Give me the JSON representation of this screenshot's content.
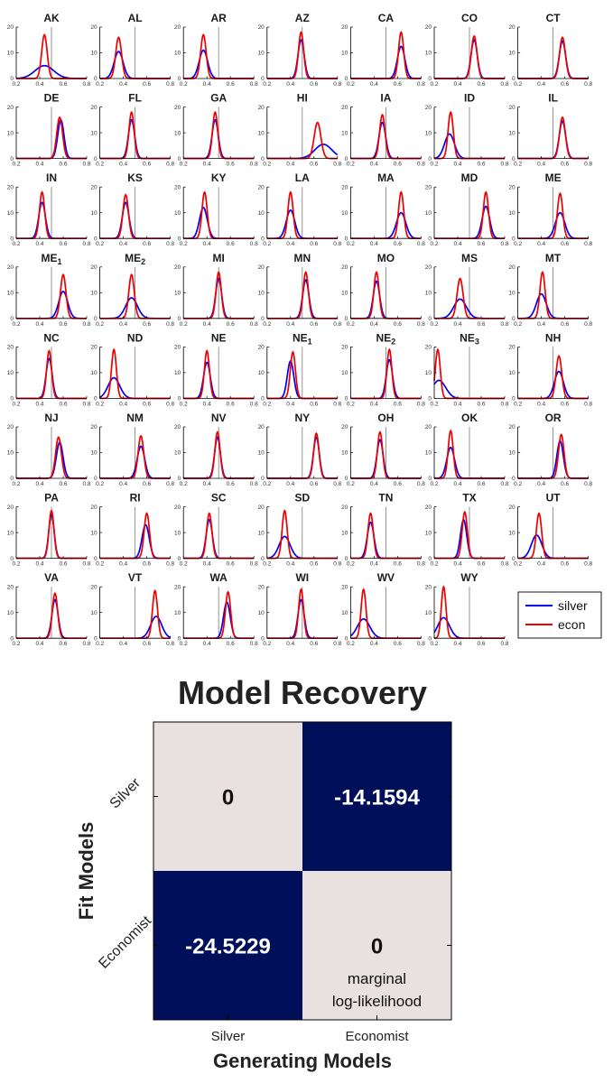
{
  "chart_data": [
    {
      "type": "line",
      "title": "",
      "xlim": [
        0.2,
        0.8
      ],
      "ylim": [
        0,
        20
      ],
      "xticks": [
        "0.2",
        "0.4",
        "0.6",
        "0.8"
      ],
      "yticks": [
        "0",
        "10",
        "20"
      ],
      "reference_line_x": 0.5,
      "legend": {
        "placement": "right of last row",
        "entries": [
          {
            "name": "silver",
            "color": "#0000ee"
          },
          {
            "name": "econ",
            "color": "#ee0000"
          }
        ]
      },
      "series_colors": {
        "silver": "#0000ee",
        "econ": "#ee0000"
      },
      "panels": [
        {
          "label": "AK",
          "sub": "",
          "silver": {
            "mean": 0.44,
            "peak": 5
          },
          "econ": {
            "mean": 0.44,
            "peak": 17
          }
        },
        {
          "label": "AL",
          "sub": "",
          "silver": {
            "mean": 0.36,
            "peak": 10.5
          },
          "econ": {
            "mean": 0.36,
            "peak": 16
          }
        },
        {
          "label": "AR",
          "sub": "",
          "silver": {
            "mean": 0.37,
            "peak": 11
          },
          "econ": {
            "mean": 0.37,
            "peak": 17
          }
        },
        {
          "label": "AZ",
          "sub": "",
          "silver": {
            "mean": 0.49,
            "peak": 15
          },
          "econ": {
            "mean": 0.49,
            "peak": 18
          }
        },
        {
          "label": "CA",
          "sub": "",
          "silver": {
            "mean": 0.63,
            "peak": 12.5
          },
          "econ": {
            "mean": 0.63,
            "peak": 18
          }
        },
        {
          "label": "CO",
          "sub": "",
          "silver": {
            "mean": 0.54,
            "peak": 15
          },
          "econ": {
            "mean": 0.54,
            "peak": 16.5
          }
        },
        {
          "label": "CT",
          "sub": "",
          "silver": {
            "mean": 0.58,
            "peak": 14.5
          },
          "econ": {
            "mean": 0.58,
            "peak": 16
          }
        },
        {
          "label": "DE",
          "sub": "",
          "silver": {
            "mean": 0.58,
            "peak": 15
          },
          "econ": {
            "mean": 0.57,
            "peak": 16
          }
        },
        {
          "label": "FL",
          "sub": "",
          "silver": {
            "mean": 0.47,
            "peak": 15
          },
          "econ": {
            "mean": 0.47,
            "peak": 18
          }
        },
        {
          "label": "GA",
          "sub": "",
          "silver": {
            "mean": 0.47,
            "peak": 15
          },
          "econ": {
            "mean": 0.47,
            "peak": 18
          }
        },
        {
          "label": "HI",
          "sub": "",
          "silver": {
            "mean": 0.68,
            "peak": 5.5
          },
          "econ": {
            "mean": 0.63,
            "peak": 14
          }
        },
        {
          "label": "IA",
          "sub": "",
          "silver": {
            "mean": 0.47,
            "peak": 14
          },
          "econ": {
            "mean": 0.47,
            "peak": 17
          }
        },
        {
          "label": "ID",
          "sub": "",
          "silver": {
            "mean": 0.33,
            "peak": 9.5
          },
          "econ": {
            "mean": 0.34,
            "peak": 18
          }
        },
        {
          "label": "IL",
          "sub": "",
          "silver": {
            "mean": 0.58,
            "peak": 14.5
          },
          "econ": {
            "mean": 0.58,
            "peak": 16
          }
        },
        {
          "label": "IN",
          "sub": "",
          "silver": {
            "mean": 0.42,
            "peak": 14
          },
          "econ": {
            "mean": 0.42,
            "peak": 18
          }
        },
        {
          "label": "KS",
          "sub": "",
          "silver": {
            "mean": 0.42,
            "peak": 14
          },
          "econ": {
            "mean": 0.42,
            "peak": 17
          }
        },
        {
          "label": "KY",
          "sub": "",
          "silver": {
            "mean": 0.37,
            "peak": 12
          },
          "econ": {
            "mean": 0.38,
            "peak": 18
          }
        },
        {
          "label": "LA",
          "sub": "",
          "silver": {
            "mean": 0.4,
            "peak": 11
          },
          "econ": {
            "mean": 0.4,
            "peak": 18
          }
        },
        {
          "label": "MA",
          "sub": "",
          "silver": {
            "mean": 0.63,
            "peak": 10
          },
          "econ": {
            "mean": 0.63,
            "peak": 18
          }
        },
        {
          "label": "MD",
          "sub": "",
          "silver": {
            "mean": 0.64,
            "peak": 12.5
          },
          "econ": {
            "mean": 0.64,
            "peak": 18
          }
        },
        {
          "label": "ME",
          "sub": "",
          "silver": {
            "mean": 0.56,
            "peak": 10
          },
          "econ": {
            "mean": 0.56,
            "peak": 17.5
          }
        },
        {
          "label": "ME",
          "sub": "1",
          "silver": {
            "mean": 0.6,
            "peak": 10.5
          },
          "econ": {
            "mean": 0.6,
            "peak": 17
          }
        },
        {
          "label": "ME",
          "sub": "2",
          "silver": {
            "mean": 0.47,
            "peak": 8
          },
          "econ": {
            "mean": 0.47,
            "peak": 17
          }
        },
        {
          "label": "MI",
          "sub": "",
          "silver": {
            "mean": 0.5,
            "peak": 15.5
          },
          "econ": {
            "mean": 0.5,
            "peak": 18
          }
        },
        {
          "label": "MN",
          "sub": "",
          "silver": {
            "mean": 0.53,
            "peak": 15
          },
          "econ": {
            "mean": 0.53,
            "peak": 18
          }
        },
        {
          "label": "MO",
          "sub": "",
          "silver": {
            "mean": 0.42,
            "peak": 14.5
          },
          "econ": {
            "mean": 0.42,
            "peak": 18
          }
        },
        {
          "label": "MS",
          "sub": "",
          "silver": {
            "mean": 0.42,
            "peak": 7.5
          },
          "econ": {
            "mean": 0.42,
            "peak": 15.5
          }
        },
        {
          "label": "MT",
          "sub": "",
          "silver": {
            "mean": 0.4,
            "peak": 9.5
          },
          "econ": {
            "mean": 0.41,
            "peak": 18
          }
        },
        {
          "label": "NC",
          "sub": "",
          "silver": {
            "mean": 0.48,
            "peak": 15.5
          },
          "econ": {
            "mean": 0.48,
            "peak": 18.5
          }
        },
        {
          "label": "ND",
          "sub": "",
          "silver": {
            "mean": 0.32,
            "peak": 8
          },
          "econ": {
            "mean": 0.32,
            "peak": 19
          }
        },
        {
          "label": "NE",
          "sub": "",
          "silver": {
            "mean": 0.4,
            "peak": 14
          },
          "econ": {
            "mean": 0.4,
            "peak": 18.5
          }
        },
        {
          "label": "NE",
          "sub": "1",
          "silver": {
            "mean": 0.4,
            "peak": 14.5
          },
          "econ": {
            "mean": 0.42,
            "peak": 18
          }
        },
        {
          "label": "NE",
          "sub": "2",
          "silver": {
            "mean": 0.53,
            "peak": 15
          },
          "econ": {
            "mean": 0.53,
            "peak": 19
          }
        },
        {
          "label": "NE",
          "sub": "3",
          "silver": {
            "mean": 0.24,
            "peak": 7
          },
          "econ": {
            "mean": 0.23,
            "peak": 19
          }
        },
        {
          "label": "NH",
          "sub": "",
          "silver": {
            "mean": 0.55,
            "peak": 10.5
          },
          "econ": {
            "mean": 0.55,
            "peak": 16.5
          }
        },
        {
          "label": "NJ",
          "sub": "",
          "silver": {
            "mean": 0.57,
            "peak": 14
          },
          "econ": {
            "mean": 0.56,
            "peak": 16
          }
        },
        {
          "label": "NM",
          "sub": "",
          "silver": {
            "mean": 0.55,
            "peak": 12.5
          },
          "econ": {
            "mean": 0.55,
            "peak": 16.5
          }
        },
        {
          "label": "NV",
          "sub": "",
          "silver": {
            "mean": 0.49,
            "peak": 16
          },
          "econ": {
            "mean": 0.49,
            "peak": 18
          }
        },
        {
          "label": "NY",
          "sub": "",
          "silver": {
            "mean": 0.62,
            "peak": 16
          },
          "econ": {
            "mean": 0.62,
            "peak": 17.5
          }
        },
        {
          "label": "OH",
          "sub": "",
          "silver": {
            "mean": 0.45,
            "peak": 15
          },
          "econ": {
            "mean": 0.45,
            "peak": 18
          }
        },
        {
          "label": "OK",
          "sub": "",
          "silver": {
            "mean": 0.34,
            "peak": 12
          },
          "econ": {
            "mean": 0.34,
            "peak": 18.5
          }
        },
        {
          "label": "OR",
          "sub": "",
          "silver": {
            "mean": 0.56,
            "peak": 14.5
          },
          "econ": {
            "mean": 0.57,
            "peak": 17
          }
        },
        {
          "label": "PA",
          "sub": "",
          "silver": {
            "mean": 0.5,
            "peak": 17
          },
          "econ": {
            "mean": 0.5,
            "peak": 18.5
          }
        },
        {
          "label": "RI",
          "sub": "",
          "silver": {
            "mean": 0.59,
            "peak": 13
          },
          "econ": {
            "mean": 0.6,
            "peak": 17.5
          }
        },
        {
          "label": "SC",
          "sub": "",
          "silver": {
            "mean": 0.42,
            "peak": 15
          },
          "econ": {
            "mean": 0.42,
            "peak": 17.5
          }
        },
        {
          "label": "SD",
          "sub": "",
          "silver": {
            "mean": 0.35,
            "peak": 8.5
          },
          "econ": {
            "mean": 0.35,
            "peak": 18.5
          }
        },
        {
          "label": "TN",
          "sub": "",
          "silver": {
            "mean": 0.37,
            "peak": 14
          },
          "econ": {
            "mean": 0.37,
            "peak": 17.5
          }
        },
        {
          "label": "TX",
          "sub": "",
          "silver": {
            "mean": 0.45,
            "peak": 15
          },
          "econ": {
            "mean": 0.46,
            "peak": 18
          }
        },
        {
          "label": "UT",
          "sub": "",
          "silver": {
            "mean": 0.36,
            "peak": 9
          },
          "econ": {
            "mean": 0.38,
            "peak": 17.5
          }
        },
        {
          "label": "VA",
          "sub": "",
          "silver": {
            "mean": 0.53,
            "peak": 15
          },
          "econ": {
            "mean": 0.53,
            "peak": 17.5
          }
        },
        {
          "label": "VT",
          "sub": "",
          "silver": {
            "mean": 0.68,
            "peak": 8.5
          },
          "econ": {
            "mean": 0.67,
            "peak": 18.5
          }
        },
        {
          "label": "WA",
          "sub": "",
          "silver": {
            "mean": 0.57,
            "peak": 14
          },
          "econ": {
            "mean": 0.58,
            "peak": 18
          }
        },
        {
          "label": "WI",
          "sub": "",
          "silver": {
            "mean": 0.49,
            "peak": 15
          },
          "econ": {
            "mean": 0.49,
            "peak": 19
          }
        },
        {
          "label": "WV",
          "sub": "",
          "silver": {
            "mean": 0.31,
            "peak": 7.5
          },
          "econ": {
            "mean": 0.31,
            "peak": 19
          }
        },
        {
          "label": "WY",
          "sub": "",
          "silver": {
            "mean": 0.28,
            "peak": 8
          },
          "econ": {
            "mean": 0.28,
            "peak": 20
          }
        }
      ]
    },
    {
      "type": "heatmap",
      "title": "Model Recovery",
      "xlabel": "Generating Models",
      "ylabel": "Fit Models",
      "x_categories": [
        "Silver",
        "Economist"
      ],
      "y_categories": [
        "Silver",
        "Economist"
      ],
      "values": [
        [
          0,
          -14.1594
        ],
        [
          -24.5229,
          0
        ]
      ],
      "value_labels": [
        [
          "0",
          "-14.1594"
        ],
        [
          "-24.5229",
          "0"
        ]
      ],
      "colorbar_note": "marginal\nlog-likelihood",
      "colors": {
        "high": "#e8e1df",
        "low": "#000f5a"
      }
    }
  ]
}
